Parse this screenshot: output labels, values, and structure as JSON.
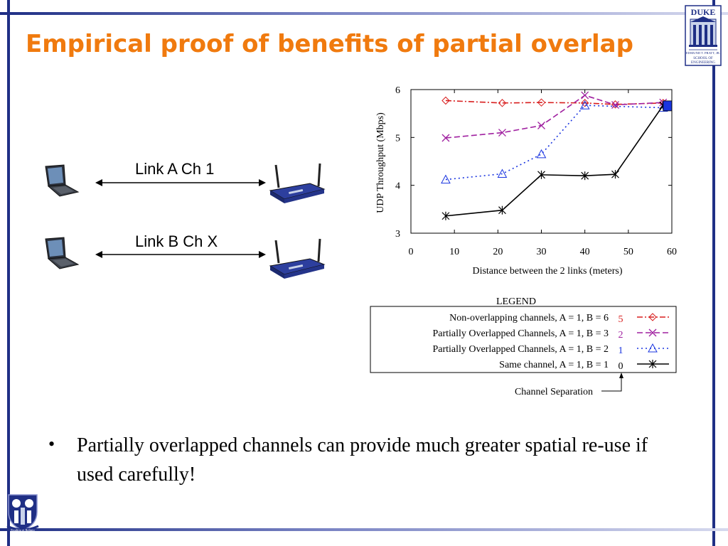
{
  "slide": {
    "title": "Empirical proof of benefits of partial overlap",
    "logo_text": [
      "DUKE",
      "EDMUND T. PRATT, JR.",
      "SCHOOL OF",
      "ENGINEERING"
    ],
    "seal_text": "Eruditio et Religio",
    "bullet": "Partially overlapped channels can provide much greater spatial re-use if  used carefully!"
  },
  "diagram": {
    "link_a": "Link A Ch 1",
    "link_b": "Link B Ch X"
  },
  "colors": {
    "title": "#f07a0e",
    "frame": "#1f2f85",
    "red": "#d81e1e",
    "magenta": "#a020a0",
    "blue": "#1a35e0",
    "black": "#000000"
  },
  "chart_data": {
    "type": "line",
    "xlabel": "Distance between the 2 links (meters)",
    "ylabel": "UDP Throughput (Mbps)",
    "xlim": [
      0,
      60
    ],
    "ylim": [
      3,
      6
    ],
    "xticks": [
      0,
      10,
      20,
      30,
      40,
      50,
      60
    ],
    "yticks": [
      3,
      4,
      5,
      6
    ],
    "series": [
      {
        "key": "non_overlap",
        "label": "Non-overlapping channels, A = 1, B = 6",
        "separation": "5",
        "color": "#d81e1e",
        "dash": "8,3,2,3",
        "marker": "diamond",
        "points": [
          [
            8,
            5.77
          ],
          [
            21,
            5.72
          ],
          [
            30,
            5.73
          ],
          [
            40,
            5.72
          ],
          [
            47,
            5.69
          ],
          [
            58,
            5.72
          ]
        ]
      },
      {
        "key": "partial_3",
        "label": "Partially Overlapped Channels, A = 1, B = 3",
        "separation": "2",
        "color": "#a020a0",
        "dash": "8,4",
        "marker": "x",
        "points": [
          [
            8,
            4.99
          ],
          [
            21,
            5.1
          ],
          [
            30,
            5.25
          ],
          [
            40,
            5.88
          ],
          [
            47,
            5.68
          ],
          [
            58,
            5.73
          ]
        ]
      },
      {
        "key": "partial_2",
        "label": "Partially Overlapped Channels, A = 1, B = 2",
        "separation": "1",
        "color": "#1a35e0",
        "dash": "2,4",
        "marker": "triangle",
        "points": [
          [
            8,
            4.12
          ],
          [
            21,
            4.24
          ],
          [
            30,
            4.65
          ],
          [
            40,
            5.67
          ],
          [
            58,
            5.62
          ]
        ]
      },
      {
        "key": "same",
        "label": "Same channel, A = 1, B = 1",
        "separation": "0",
        "color": "#000000",
        "dash": "",
        "marker": "star",
        "points": [
          [
            8,
            3.36
          ],
          [
            21,
            3.48
          ],
          [
            30,
            4.22
          ],
          [
            40,
            4.2
          ],
          [
            47,
            4.23
          ],
          [
            58,
            5.67
          ]
        ]
      }
    ],
    "end_marker": {
      "x": 59,
      "y": 5.66,
      "color": "#1a35e0"
    },
    "legend": {
      "title": "LEGEND",
      "separation_label": "Channel Separation"
    }
  }
}
